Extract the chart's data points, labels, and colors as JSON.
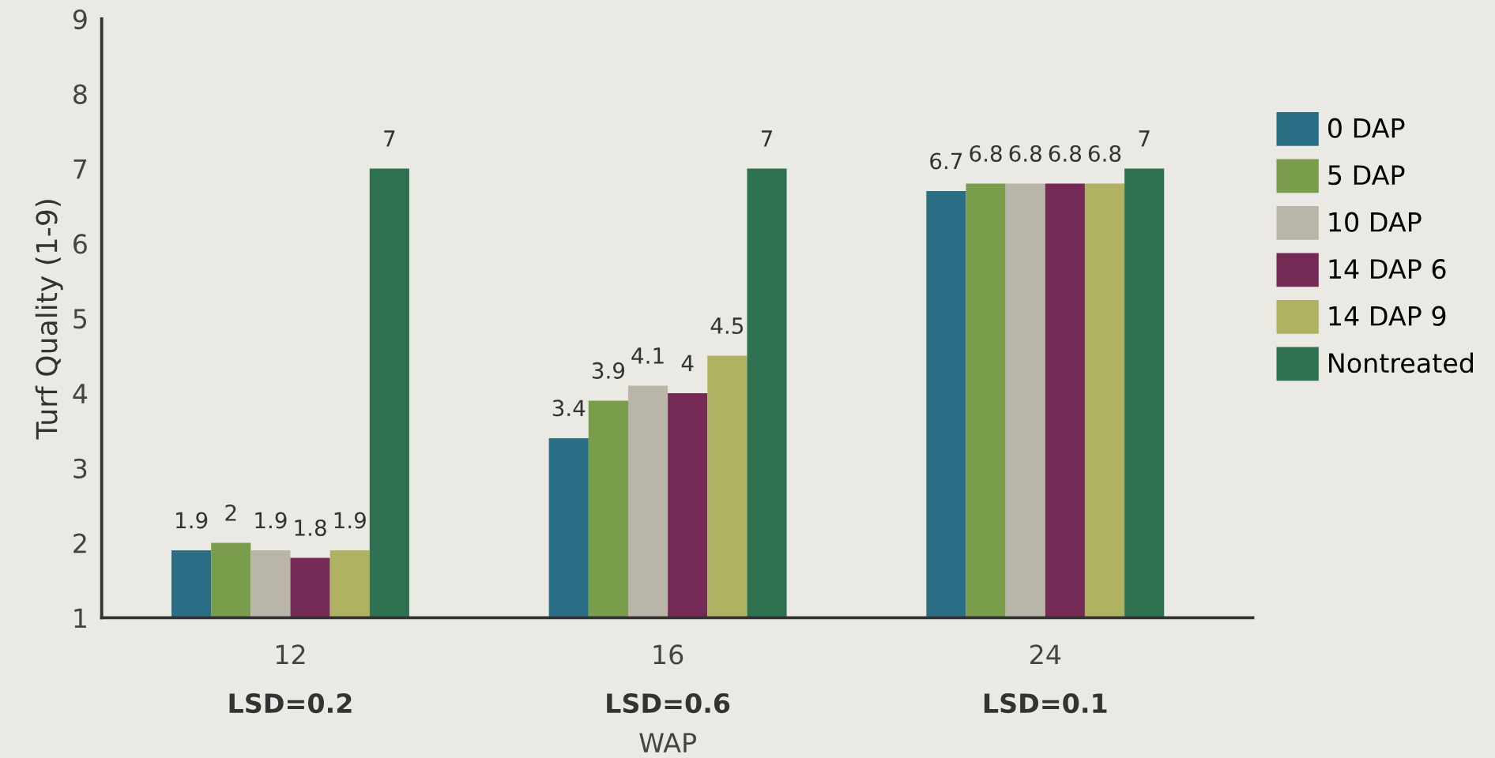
{
  "chart_data": {
    "type": "bar",
    "ylabel": "Turf Quality (1-9)",
    "xlabel": "WAP",
    "categories": [
      "12",
      "16",
      "24"
    ],
    "series": [
      {
        "name": "0 DAP",
        "color": "#2a6f86",
        "values": [
          1.9,
          3.4,
          6.7
        ]
      },
      {
        "name": "5 DAP",
        "color": "#7a9d4c",
        "values": [
          2,
          3.9,
          6.8
        ]
      },
      {
        "name": "10 DAP",
        "color": "#b9b5a9",
        "values": [
          1.9,
          4.1,
          6.8
        ]
      },
      {
        "name": "14 DAP 6",
        "color": "#742a55",
        "values": [
          1.8,
          4,
          6.8
        ]
      },
      {
        "name": "14 DAP 9",
        "color": "#afb361",
        "values": [
          1.9,
          4.5,
          6.8
        ]
      },
      {
        "name": "Nontreated",
        "color": "#2f7251",
        "values": [
          7,
          7,
          7
        ]
      }
    ],
    "annotations": [
      "LSD=0.2",
      "LSD=0.6",
      "LSD=0.1"
    ],
    "ylim": [
      1,
      9
    ],
    "yticks": [
      1,
      2,
      3,
      4,
      5,
      6,
      7,
      8,
      9
    ],
    "data_labels": true,
    "legend": "right",
    "grid": false
  }
}
